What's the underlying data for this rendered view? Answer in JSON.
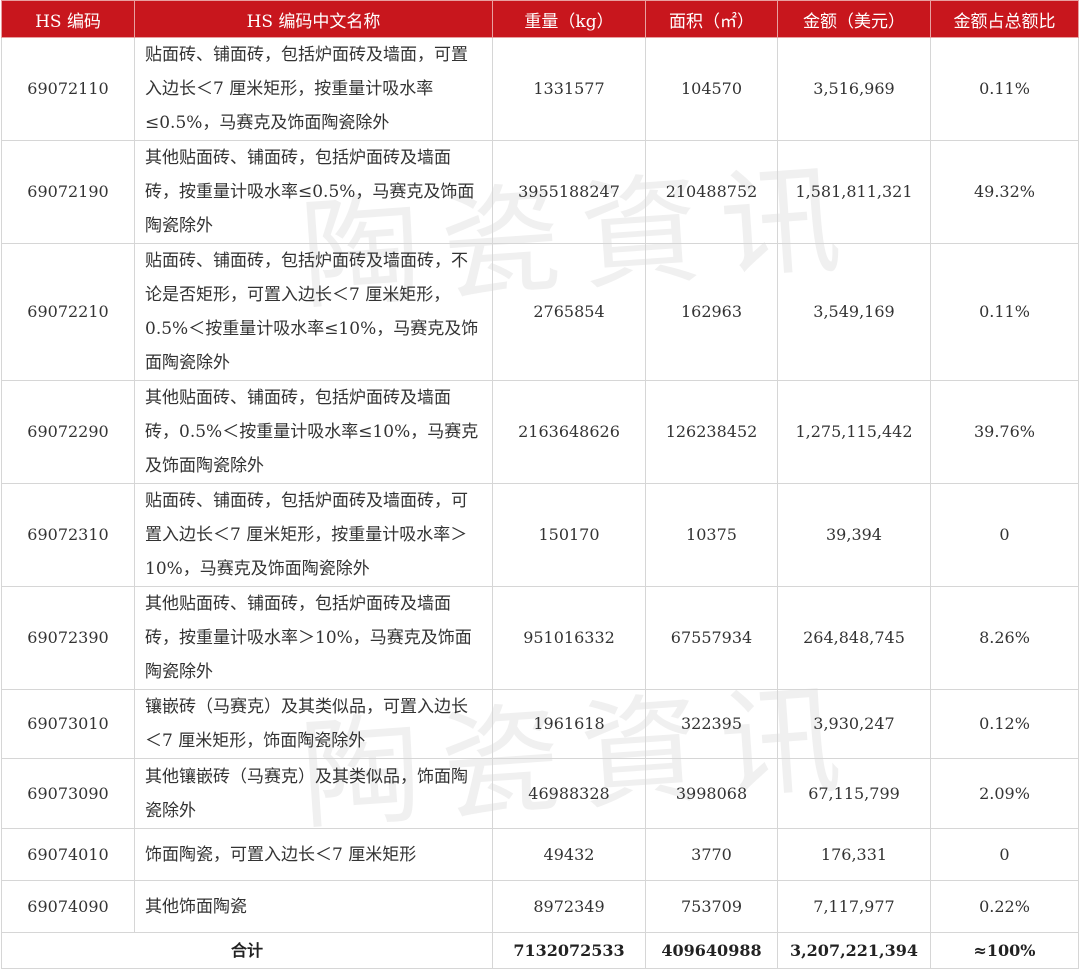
{
  "header": [
    "HS 编码",
    "HS 编码中文名称",
    "重量（kg）",
    "面积（㎡）",
    "金额（美元）",
    "金额占总额比"
  ],
  "rows": [
    {
      "code": "69072110",
      "name": "贴面砖、铺面砖，包括炉面砖及墙面，可置入边长＜7 厘米矩形，按重量计吸水率≤0.5%，马赛克及饰面陶瓷除外",
      "weight": "1331577",
      "area": "104570",
      "amount": "3,516,969",
      "share": "0.11%"
    },
    {
      "code": "69072190",
      "name": "其他贴面砖、铺面砖，包括炉面砖及墙面砖，按重量计吸水率≤0.5%，马赛克及饰面陶瓷除外",
      "weight": "3955188247",
      "area": "210488752",
      "amount": "1,581,811,321",
      "share": "49.32%"
    },
    {
      "code": "69072210",
      "name": "贴面砖、铺面砖，包括炉面砖及墙面砖，不论是否矩形，可置入边长＜7 厘米矩形，0.5%＜按重量计吸水率≤10%，马赛克及饰面陶瓷除外",
      "weight": "2765854",
      "area": "162963",
      "amount": "3,549,169",
      "share": "0.11%"
    },
    {
      "code": "69072290",
      "name": "其他贴面砖、铺面砖，包括炉面砖及墙面砖，0.5%＜按重量计吸水率≤10%，马赛克及饰面陶瓷除外",
      "weight": "2163648626",
      "area": "126238452",
      "amount": "1,275,115,442",
      "share": "39.76%"
    },
    {
      "code": "69072310",
      "name": "贴面砖、铺面砖，包括炉面砖及墙面砖，可置入边长＜7 厘米矩形，按重量计吸水率＞10%，马赛克及饰面陶瓷除外",
      "weight": "150170",
      "area": "10375",
      "amount": "39,394",
      "share": "0"
    },
    {
      "code": "69072390",
      "name": "其他贴面砖、铺面砖，包括炉面砖及墙面砖，按重量计吸水率＞10%，马赛克及饰面陶瓷除外",
      "weight": "951016332",
      "area": "67557934",
      "amount": "264,848,745",
      "share": "8.26%"
    },
    {
      "code": "69073010",
      "name": "镶嵌砖（马赛克）及其类似品，可置入边长＜7 厘米矩形，饰面陶瓷除外",
      "weight": "1961618",
      "area": "322395",
      "amount": "3,930,247",
      "share": "0.12%"
    },
    {
      "code": "69073090",
      "name": "其他镶嵌砖（马赛克）及其类似品，饰面陶瓷除外",
      "weight": "46988328",
      "area": "3998068",
      "amount": "67,115,799",
      "share": "2.09%"
    },
    {
      "code": "69074010",
      "name": "饰面陶瓷，可置入边长＜7 厘米矩形",
      "weight": "49432",
      "area": "3770",
      "amount": "176,331",
      "share": "0"
    },
    {
      "code": "69074090",
      "name": "其他饰面陶瓷",
      "weight": "8972349",
      "area": "753709",
      "amount": "7,117,977",
      "share": "0.22%"
    }
  ],
  "total": {
    "label": "合计",
    "weight": "7132072533",
    "area": "409640988",
    "amount": "3,207,221,394",
    "share": "≈100%"
  },
  "watermark": "陶瓷資讯",
  "colors": {
    "header_bg": "#c8161d",
    "header_text": "#ffffff",
    "border": "#d6d6d6"
  }
}
